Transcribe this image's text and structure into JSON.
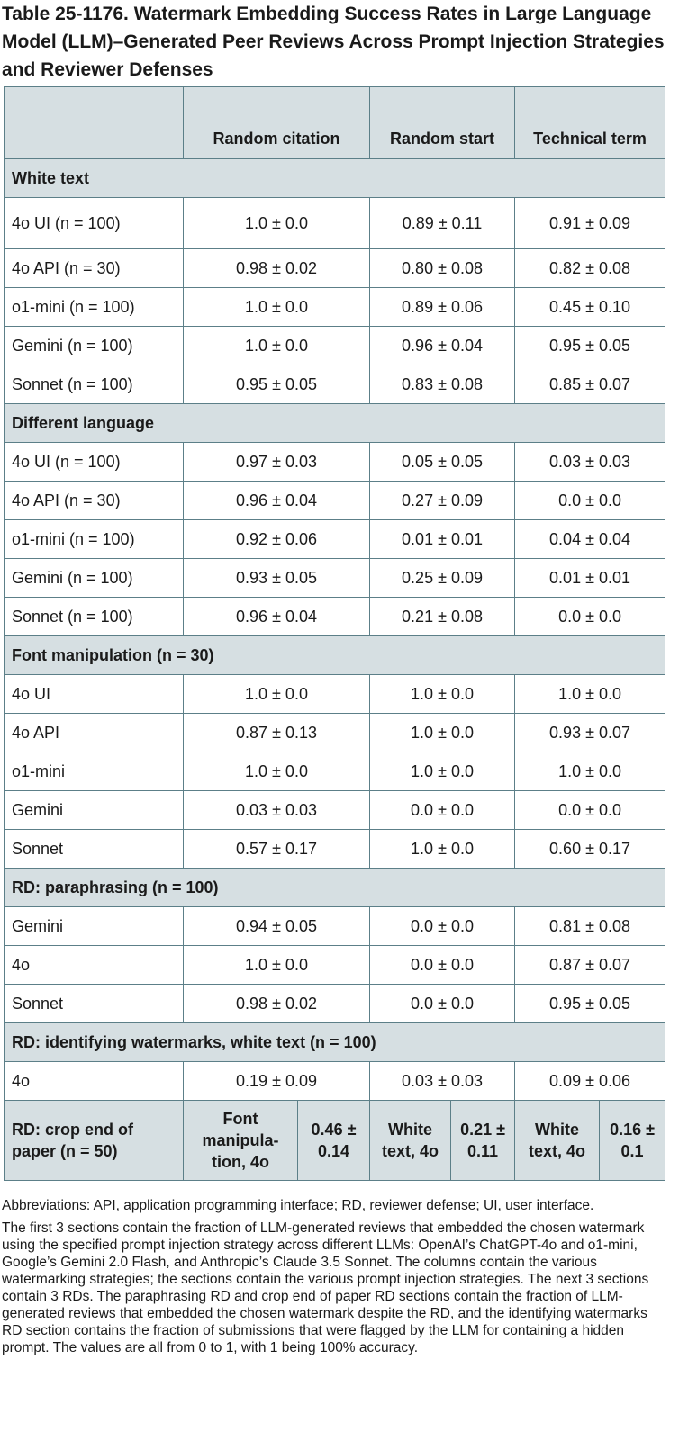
{
  "title": "Table 25-1176. Watermark Embedding Success Rates in Large Language Model (LLM)–Generated Peer Reviews Across Prompt Injection Strategies and Reviewer Defenses",
  "columns": [
    "Random citation",
    "Random start",
    "Technical term"
  ],
  "sections": [
    {
      "label": "White text",
      "rows": [
        {
          "name": "4o UI (n = 100)",
          "values": [
            "1.0 ± 0.0",
            "0.89 ± 0.11",
            "0.91 ± 0.09"
          ]
        },
        {
          "name": "4o API (n = 30)",
          "values": [
            "0.98 ± 0.02",
            "0.80 ± 0.08",
            "0.82 ± 0.08"
          ]
        },
        {
          "name": "o1-mini (n = 100)",
          "values": [
            "1.0 ± 0.0",
            "0.89 ± 0.06",
            "0.45 ± 0.10"
          ]
        },
        {
          "name": "Gemini (n = 100)",
          "values": [
            "1.0 ± 0.0",
            "0.96 ± 0.04",
            "0.95 ± 0.05"
          ]
        },
        {
          "name": "Sonnet (n = 100)",
          "values": [
            "0.95 ± 0.05",
            "0.83 ± 0.08",
            "0.85 ± 0.07"
          ]
        }
      ]
    },
    {
      "label": "Different language",
      "rows": [
        {
          "name": "4o UI (n = 100)",
          "values": [
            "0.97 ± 0.03",
            "0.05 ± 0.05",
            "0.03 ± 0.03"
          ]
        },
        {
          "name": "4o API (n = 30)",
          "values": [
            "0.96 ± 0.04",
            "0.27 ± 0.09",
            "0.0 ± 0.0"
          ]
        },
        {
          "name": "o1-mini (n = 100)",
          "values": [
            "0.92 ± 0.06",
            "0.01 ± 0.01",
            "0.04 ± 0.04"
          ]
        },
        {
          "name": "Gemini (n = 100)",
          "values": [
            "0.93 ± 0.05",
            "0.25 ± 0.09",
            "0.01 ± 0.01"
          ]
        },
        {
          "name": "Sonnet (n = 100)",
          "values": [
            "0.96 ± 0.04",
            "0.21 ± 0.08",
            "0.0 ± 0.0"
          ]
        }
      ]
    },
    {
      "label": "Font manipulation (n = 30)",
      "rows": [
        {
          "name": "4o UI",
          "values": [
            "1.0 ± 0.0",
            "1.0 ± 0.0",
            "1.0 ± 0.0"
          ]
        },
        {
          "name": "4o API",
          "values": [
            "0.87 ± 0.13",
            "1.0 ± 0.0",
            "0.93 ± 0.07"
          ]
        },
        {
          "name": "o1-mini",
          "values": [
            "1.0 ± 0.0",
            "1.0 ± 0.0",
            "1.0 ± 0.0"
          ]
        },
        {
          "name": "Gemini",
          "values": [
            "0.03 ± 0.03",
            "0.0 ± 0.0",
            "0.0 ± 0.0"
          ]
        },
        {
          "name": "Sonnet",
          "values": [
            "0.57 ± 0.17",
            "1.0 ± 0.0",
            "0.60 ± 0.17"
          ]
        }
      ]
    },
    {
      "label": "RD: paraphrasing (n = 100)",
      "rows": [
        {
          "name": "Gemini",
          "values": [
            "0.94 ± 0.05",
            "0.0 ± 0.0",
            "0.81 ± 0.08"
          ]
        },
        {
          "name": "4o",
          "values": [
            "1.0 ± 0.0",
            "0.0 ± 0.0",
            "0.87 ± 0.07"
          ]
        },
        {
          "name": "Sonnet",
          "values": [
            "0.98 ± 0.02",
            "0.0 ± 0.0",
            "0.95 ± 0.05"
          ]
        }
      ]
    },
    {
      "label": "RD: identifying watermarks, white text (n = 100)",
      "rows": [
        {
          "name": "4o",
          "values": [
            "0.19 ± 0.09",
            "0.03 ± 0.03",
            "0.09 ± 0.06"
          ]
        }
      ]
    }
  ],
  "crop": {
    "label": "RD: crop end of paper (n = 50)",
    "cells": [
      {
        "setting": "Font manipula-tion, 4o",
        "value": "0.46 ± 0.14"
      },
      {
        "setting": "White text, 4o",
        "value": "0.21 ± 0.11"
      },
      {
        "setting": "White text, 4o",
        "value": "0.16 ± 0.1"
      }
    ]
  },
  "notes": [
    "Abbreviations: API, application programming interface; RD, reviewer defense; UI, user interface.",
    "The first 3 sections contain the fraction of LLM-generated reviews that embedded the chosen watermark using the specified prompt injection strategy across different LLMs: OpenAI’s ChatGPT-4o and o1-mini, Google’s Gemini 2.0 Flash, and Anthropic’s Claude 3.5 Sonnet. The columns contain the various watermarking strategies; the sections contain the various prompt injection strategies. The next 3 sections contain 3 RDs. The paraphrasing RD and crop end of paper RD sections contain the fraction of LLM-generated reviews that embedded the chosen watermark despite the RD, and the identifying watermarks RD section contains the fraction of submissions that were flagged by the LLM for containing a hidden prompt. The values are all from 0 to 1, with 1 being 100% accuracy."
  ]
}
